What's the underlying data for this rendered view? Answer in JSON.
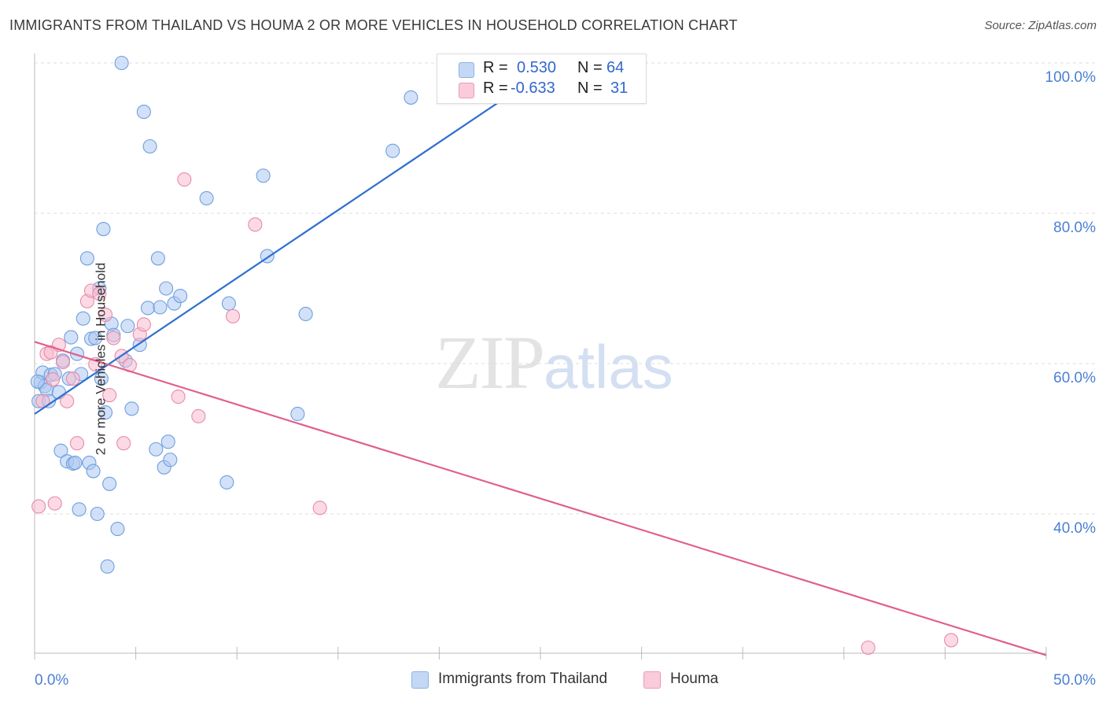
{
  "title": "IMMIGRANTS FROM THAILAND VS HOUMA 2 OR MORE VEHICLES IN HOUSEHOLD CORRELATION CHART",
  "source": "Source: ZipAtlas.com",
  "watermark": {
    "zip": "ZIP",
    "atlas": "atlas"
  },
  "legend": {
    "rows": [
      {
        "r_label": "R =",
        "r_value": "0.530",
        "n_label": "N =",
        "n_value": "64",
        "color": "#adc8f0"
      },
      {
        "r_label": "R =",
        "r_value": "-0.633",
        "n_label": "N =",
        "n_value": "31",
        "color": "#f7bcd0"
      }
    ]
  },
  "bottom_legend": {
    "series1": "Immigrants from Thailand",
    "series2": "Houma"
  },
  "chart_data": {
    "type": "scatter",
    "ylabel": "2 or more Vehicles in Household",
    "xlim": [
      0,
      50
    ],
    "ylim": [
      20,
      102
    ],
    "x_tick_labels": [
      {
        "value": 0,
        "label": "0.0%"
      },
      {
        "value": 50,
        "label": "50.0%"
      }
    ],
    "y_tick_labels": [
      {
        "value": 40,
        "label": "40.0%"
      },
      {
        "value": 60,
        "label": "60.0%"
      },
      {
        "value": 80,
        "label": "80.0%"
      },
      {
        "value": 100,
        "label": "100.0%"
      }
    ],
    "x_minor_ticks": [
      0,
      5,
      10,
      15,
      20,
      25,
      30,
      35,
      40,
      45,
      50
    ],
    "grid": true,
    "series": [
      {
        "name": "Immigrants from Thailand",
        "color": "#6f9fe0",
        "fill": "#adc8f0",
        "trend": {
          "x": [
            0,
            25
          ],
          "y": [
            53.3,
            98.5
          ],
          "color": "#2e6fcf"
        },
        "points": [
          [
            0.2,
            55.0
          ],
          [
            0.3,
            57.5
          ],
          [
            0.4,
            58.8
          ],
          [
            0.5,
            57.0
          ],
          [
            0.6,
            56.5
          ],
          [
            0.8,
            58.5
          ],
          [
            1.0,
            58.6
          ],
          [
            1.2,
            56.2
          ],
          [
            1.3,
            48.4
          ],
          [
            1.4,
            60.4
          ],
          [
            1.6,
            47.0
          ],
          [
            1.7,
            58.0
          ],
          [
            1.8,
            63.5
          ],
          [
            1.9,
            46.7
          ],
          [
            2.0,
            46.8
          ],
          [
            2.1,
            61.3
          ],
          [
            2.2,
            40.6
          ],
          [
            2.3,
            58.6
          ],
          [
            2.4,
            66.0
          ],
          [
            2.6,
            74.0
          ],
          [
            2.7,
            46.8
          ],
          [
            2.8,
            63.3
          ],
          [
            2.9,
            45.7
          ],
          [
            3.0,
            63.4
          ],
          [
            3.1,
            40.0
          ],
          [
            3.2,
            70.0
          ],
          [
            3.3,
            58.0
          ],
          [
            3.4,
            77.9
          ],
          [
            3.5,
            53.5
          ],
          [
            3.6,
            33.0
          ],
          [
            3.7,
            44.0
          ],
          [
            3.8,
            65.3
          ],
          [
            3.9,
            63.8
          ],
          [
            4.1,
            38.0
          ],
          [
            4.3,
            100.0
          ],
          [
            4.5,
            60.4
          ],
          [
            4.6,
            65.0
          ],
          [
            4.8,
            54.0
          ],
          [
            5.2,
            62.5
          ],
          [
            5.4,
            93.5
          ],
          [
            5.6,
            67.4
          ],
          [
            5.7,
            88.9
          ],
          [
            6.0,
            48.6
          ],
          [
            6.1,
            74.0
          ],
          [
            6.2,
            67.5
          ],
          [
            6.4,
            46.2
          ],
          [
            6.5,
            70.0
          ],
          [
            6.6,
            49.6
          ],
          [
            6.7,
            47.2
          ],
          [
            6.9,
            68.0
          ],
          [
            7.2,
            69.0
          ],
          [
            8.5,
            82.0
          ],
          [
            9.5,
            44.2
          ],
          [
            9.6,
            68.0
          ],
          [
            11.3,
            85.0
          ],
          [
            11.5,
            74.3
          ],
          [
            13.0,
            53.3
          ],
          [
            13.4,
            66.6
          ],
          [
            17.7,
            88.3
          ],
          [
            18.6,
            95.4
          ],
          [
            22.5,
            100.0
          ],
          [
            24.5,
            98.0
          ],
          [
            0.15,
            57.6
          ],
          [
            0.7,
            55.0
          ]
        ]
      },
      {
        "name": "Houma",
        "color": "#e88aa8",
        "fill": "#f7bcd0",
        "trend": {
          "x": [
            0,
            50
          ],
          "y": [
            62.9,
            21.2
          ],
          "color": "#e0608f"
        },
        "points": [
          [
            0.2,
            41.0
          ],
          [
            0.4,
            55.0
          ],
          [
            0.6,
            61.3
          ],
          [
            0.8,
            61.5
          ],
          [
            1.0,
            41.4
          ],
          [
            1.2,
            62.5
          ],
          [
            1.4,
            60.2
          ],
          [
            1.6,
            55.0
          ],
          [
            1.9,
            58.0
          ],
          [
            2.1,
            49.4
          ],
          [
            2.6,
            68.3
          ],
          [
            2.8,
            69.7
          ],
          [
            3.0,
            59.9
          ],
          [
            3.2,
            69.3
          ],
          [
            3.5,
            66.5
          ],
          [
            3.7,
            55.8
          ],
          [
            3.9,
            63.4
          ],
          [
            4.3,
            61.0
          ],
          [
            4.4,
            49.4
          ],
          [
            4.7,
            59.8
          ],
          [
            5.2,
            63.9
          ],
          [
            5.4,
            65.2
          ],
          [
            7.1,
            55.6
          ],
          [
            7.4,
            84.5
          ],
          [
            8.1,
            53.0
          ],
          [
            9.8,
            66.3
          ],
          [
            10.9,
            78.5
          ],
          [
            14.1,
            40.8
          ],
          [
            41.2,
            22.2
          ],
          [
            45.3,
            23.2
          ],
          [
            0.9,
            57.9
          ]
        ]
      }
    ]
  }
}
